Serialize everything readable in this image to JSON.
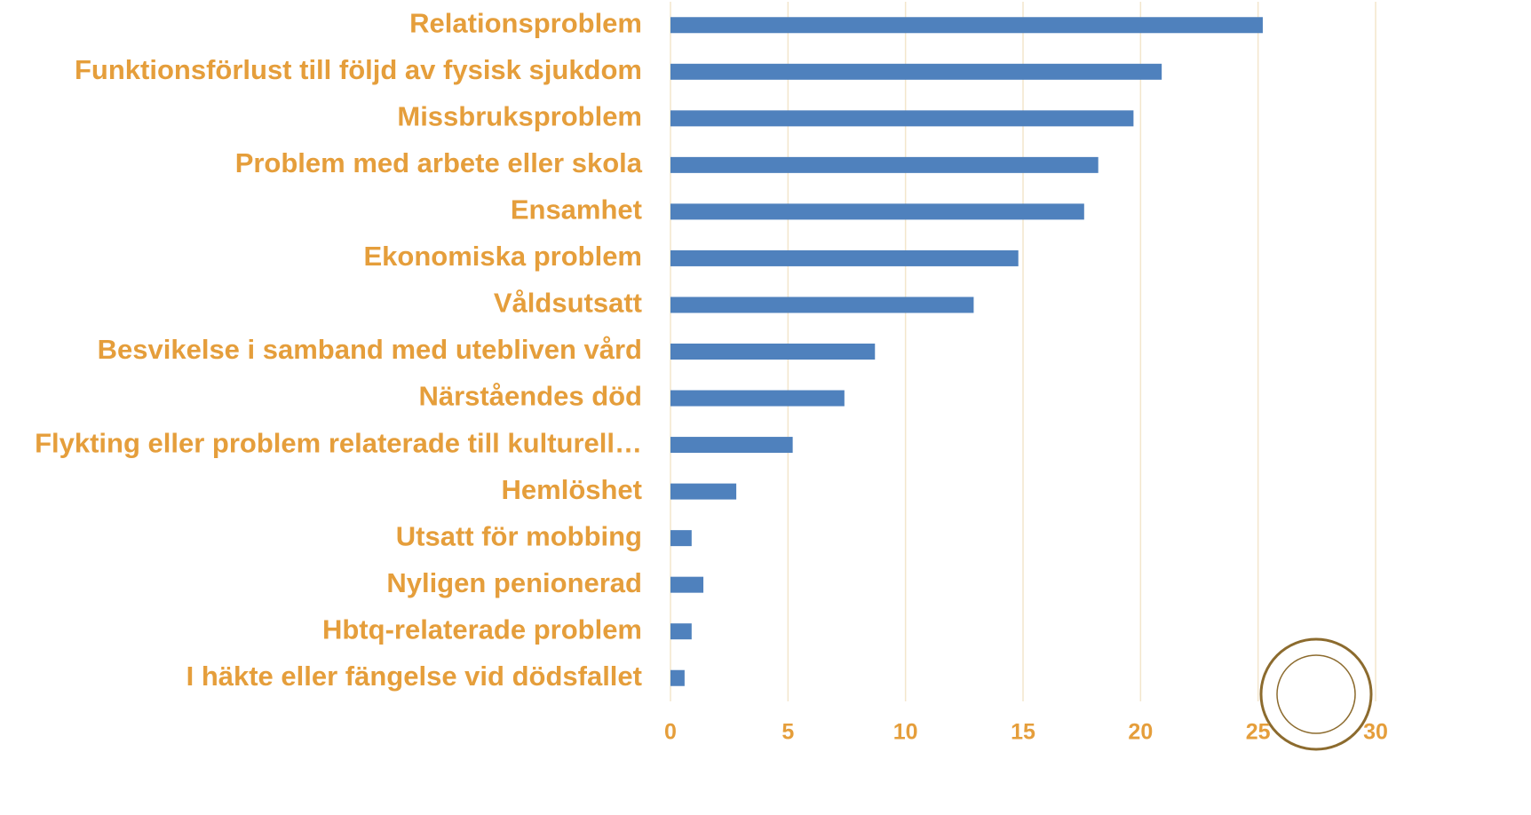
{
  "chart_data": {
    "type": "bar",
    "orientation": "horizontal",
    "categories": [
      "Relationsproblem",
      "Funktionsförlust till följd av fysisk sjukdom",
      "Missbruksproblem",
      "Problem med arbete eller skola",
      "Ensamhet",
      "Ekonomiska problem",
      "Våldsutsatt",
      "Besvikelse i samband med utebliven vård",
      "Närståendes död",
      "Flykting eller problem relaterade till kulturell…",
      "Hemlöshet",
      "Utsatt för mobbing",
      "Nyligen penionerad",
      "Hbtq-relaterade problem",
      "I häkte eller fängelse vid dödsfallet"
    ],
    "values": [
      25.2,
      20.9,
      19.7,
      18.2,
      17.6,
      14.8,
      12.9,
      8.7,
      7.4,
      5.2,
      2.8,
      0.9,
      1.4,
      0.9,
      0.6
    ],
    "color": "#4f81bd",
    "xlim": [
      0,
      30
    ],
    "xticks": [
      0,
      5,
      10,
      15,
      20,
      25,
      30
    ],
    "grid": true
  }
}
